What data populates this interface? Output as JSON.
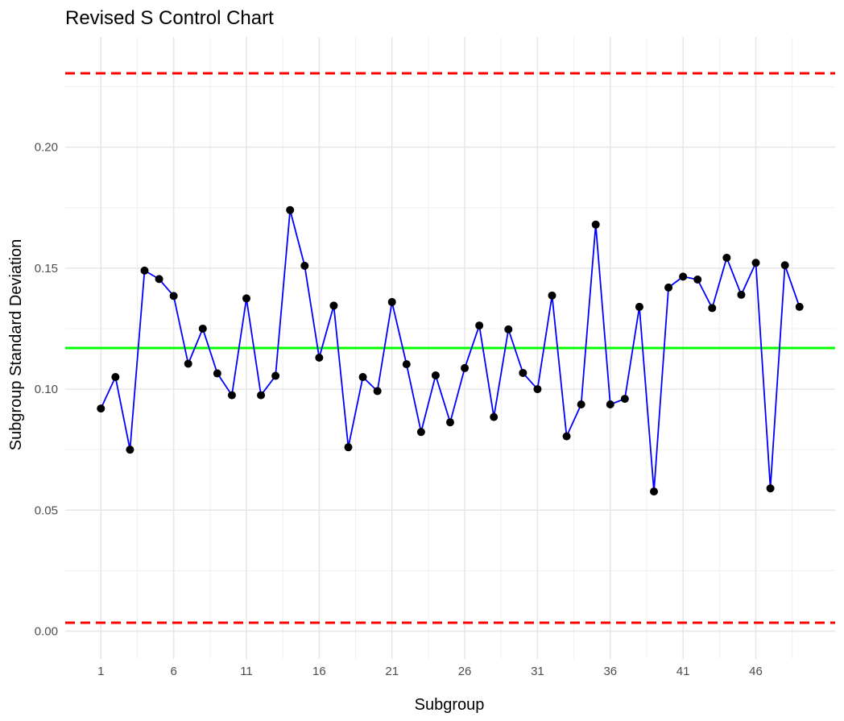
{
  "chart_data": {
    "type": "line",
    "title": "Revised S Control Chart",
    "xlabel": "Subgroup",
    "ylabel": "Subgroup Standard Deviation",
    "x": [
      1,
      2,
      3,
      4,
      5,
      6,
      7,
      8,
      9,
      10,
      11,
      12,
      13,
      14,
      15,
      16,
      17,
      18,
      19,
      20,
      21,
      22,
      23,
      24,
      25,
      26,
      27,
      28,
      29,
      30,
      31,
      32,
      33,
      34,
      35,
      36,
      37,
      38,
      39,
      40,
      41,
      42,
      43,
      44,
      45,
      46,
      47,
      48,
      49
    ],
    "series": [
      {
        "values": [
          0.092,
          0.105,
          0.075,
          0.149,
          0.1455,
          0.1385,
          0.1105,
          0.125,
          0.1065,
          0.0975,
          0.1375,
          0.0975,
          0.1055,
          0.174,
          0.151,
          0.113,
          0.1345,
          0.076,
          0.105,
          0.0992,
          0.136,
          0.1103,
          0.0823,
          0.1057,
          0.0863,
          0.1087,
          0.1263,
          0.0885,
          0.1247,
          0.1067,
          0.1,
          0.1387,
          0.0805,
          0.0937,
          0.168,
          0.0937,
          0.096,
          0.134,
          0.0577,
          0.142,
          0.1465,
          0.1453,
          0.1335,
          0.1543,
          0.139,
          0.1522,
          0.059,
          0.1512,
          0.134
        ],
        "color": "#0000ff",
        "marker_color": "#000000"
      }
    ],
    "reference_lines": [
      {
        "y": 0.2305,
        "color": "#ff0000",
        "style": "dashed"
      },
      {
        "y": 0.117,
        "color": "#00ff00",
        "style": "solid"
      },
      {
        "y": 0.0035,
        "color": "#ff0000",
        "style": "dashed"
      }
    ],
    "xticks": [
      "1",
      "6",
      "11",
      "16",
      "21",
      "26",
      "31",
      "36",
      "41",
      "46"
    ],
    "yticks": [
      "0.00",
      "0.05",
      "0.10",
      "0.15",
      "0.20"
    ],
    "xlim": [
      -1.45,
      51.45
    ],
    "ylim": [
      -0.0115,
      0.2455
    ],
    "grid": true,
    "legend": "none"
  }
}
